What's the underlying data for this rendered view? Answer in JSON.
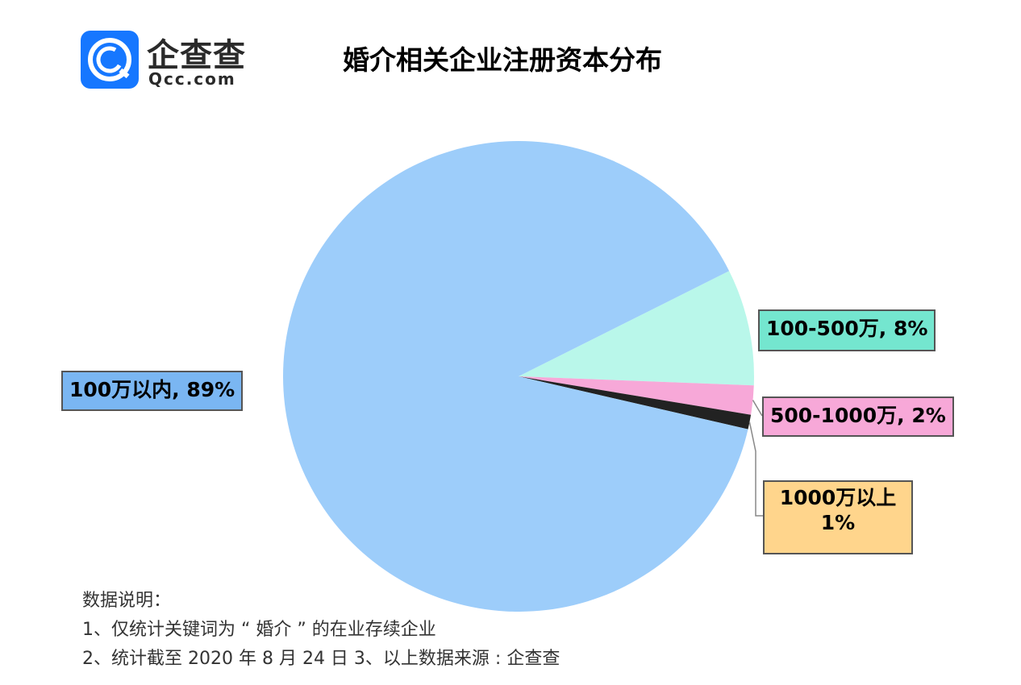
{
  "logo": {
    "name_cn": "企查查",
    "domain": "Qcc.com",
    "mark_letter": "Q",
    "brand_color": "#1677ff"
  },
  "title": "婚介相关企业注册资本分布",
  "chart_data": {
    "type": "pie",
    "title": "婚介相关企业注册资本分布",
    "slices": [
      {
        "label": "100万以内",
        "value": 89,
        "color": "#9dcdfa",
        "box_color": "#7ab6f2"
      },
      {
        "label": "100-500万",
        "value": 8,
        "color": "#b9f7ea",
        "box_color": "#74e6cf"
      },
      {
        "label": "500-1000万",
        "value": 2,
        "color": "#f7a8d8",
        "box_color": "#f7a8d8"
      },
      {
        "label": "1000万以上",
        "value": 1,
        "color": "#222222",
        "box_color": "#ffd58c"
      }
    ],
    "labels_text": [
      "100万以内, 89%",
      "100-500万, 8%",
      "500-1000万, 2%",
      "1000万以上 1%"
    ]
  },
  "notes": {
    "heading": "数据说明：",
    "line1": "1、仅统计关键词为 “ 婚介 ” 的在业存续企业",
    "line2": "2、统计截至 2020 年 8 月 24 日   3、以上数据来源 : 企查查"
  }
}
